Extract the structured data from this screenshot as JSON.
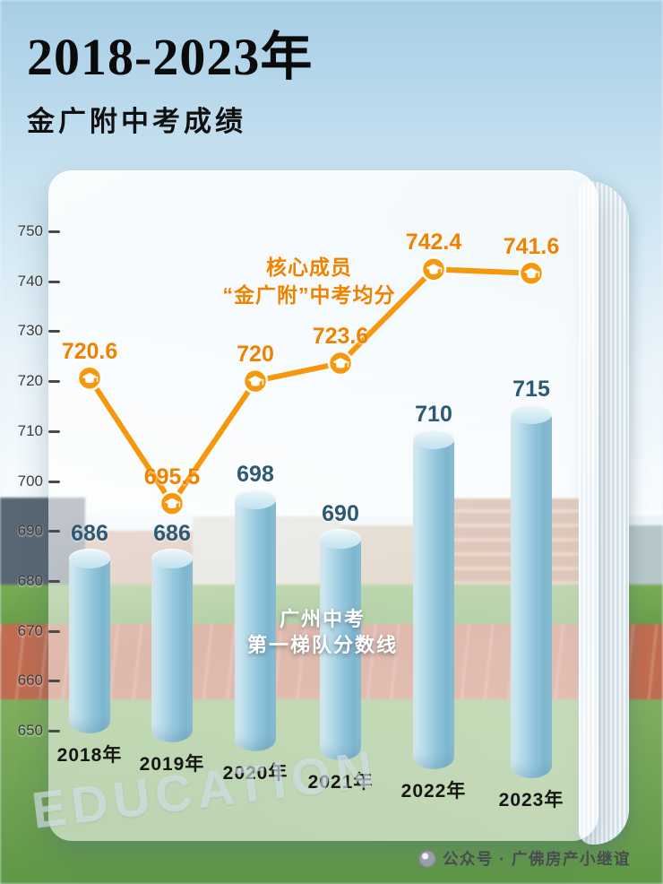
{
  "header": {
    "title": "2018-2023年",
    "subtitle": "金广附中考成绩"
  },
  "chart_data": {
    "type": "combo",
    "categories": [
      "2018年",
      "2019年",
      "2020年",
      "2021年",
      "2022年",
      "2023年"
    ],
    "series": [
      {
        "name": "核心成员“金广附”中考均分",
        "type": "line",
        "color": "#F6980B",
        "values": [
          720.6,
          695.5,
          720,
          723.6,
          742.4,
          741.6
        ]
      },
      {
        "name": "广州中考第一梯队分数线",
        "type": "bar",
        "color": "#8FC3DA",
        "values": [
          686,
          686,
          698,
          690,
          710,
          715
        ]
      }
    ],
    "ylim": [
      650,
      750
    ],
    "yticks": [
      650,
      660,
      670,
      680,
      690,
      700,
      710,
      720,
      730,
      740,
      750
    ],
    "grid": false,
    "legend_position": "none",
    "annotations": {
      "line_note_line1": "核心成员",
      "line_note_line2": "“金广附”中考均分",
      "bar_note_line1": "广州中考",
      "bar_note_line2": "第一梯队分数线"
    }
  },
  "footer": {
    "watermark": "EDUCATION",
    "credit": "公众号 · 广佛房产小继谊"
  }
}
